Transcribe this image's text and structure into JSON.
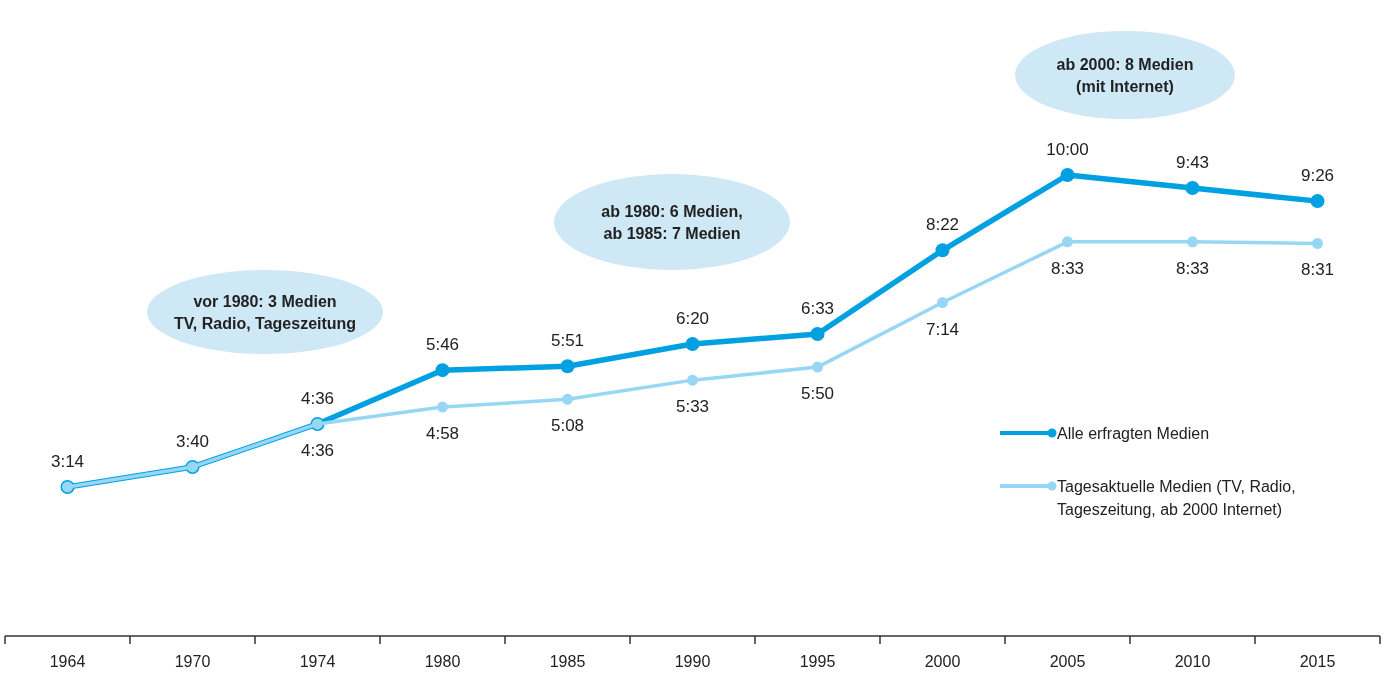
{
  "chart_data": {
    "type": "line",
    "categories": [
      "1964",
      "1970",
      "1974",
      "1980",
      "1985",
      "1990",
      "1995",
      "2000",
      "2005",
      "2010",
      "2015"
    ],
    "series": [
      {
        "name": "Alle erfragten Medien",
        "color": "#00a0e1",
        "values": [
          194,
          220,
          276,
          346,
          351,
          380,
          393,
          502,
          600,
          583,
          566
        ],
        "value_labels": [
          "3:14",
          "3:40",
          "4:36",
          "5:46",
          "5:51",
          "6:20",
          "6:33",
          "8:22",
          "10:00",
          "9:43",
          "9:26"
        ]
      },
      {
        "name": "Tagesaktuelle Medien (TV, Radio, Tageszeitung, ab 2000 Internet)",
        "color": "#97d7f4",
        "values": [
          194,
          220,
          276,
          298,
          308,
          333,
          350,
          434,
          513,
          513,
          511
        ],
        "value_labels": [
          null,
          null,
          "4:36",
          "4:58",
          "5:08",
          "5:33",
          "5:50",
          "7:14",
          "8:33",
          "8:33",
          "8:31"
        ]
      }
    ],
    "annotations": [
      "vor 1980: 3 Medien\nTV, Radio, Tageszeitung",
      "ab 1980: 6 Medien,\nab 1985: 7 Medien",
      "ab 2000: 8 Medien\n(mit Internet)"
    ],
    "marker": "circle",
    "legend": "right"
  }
}
